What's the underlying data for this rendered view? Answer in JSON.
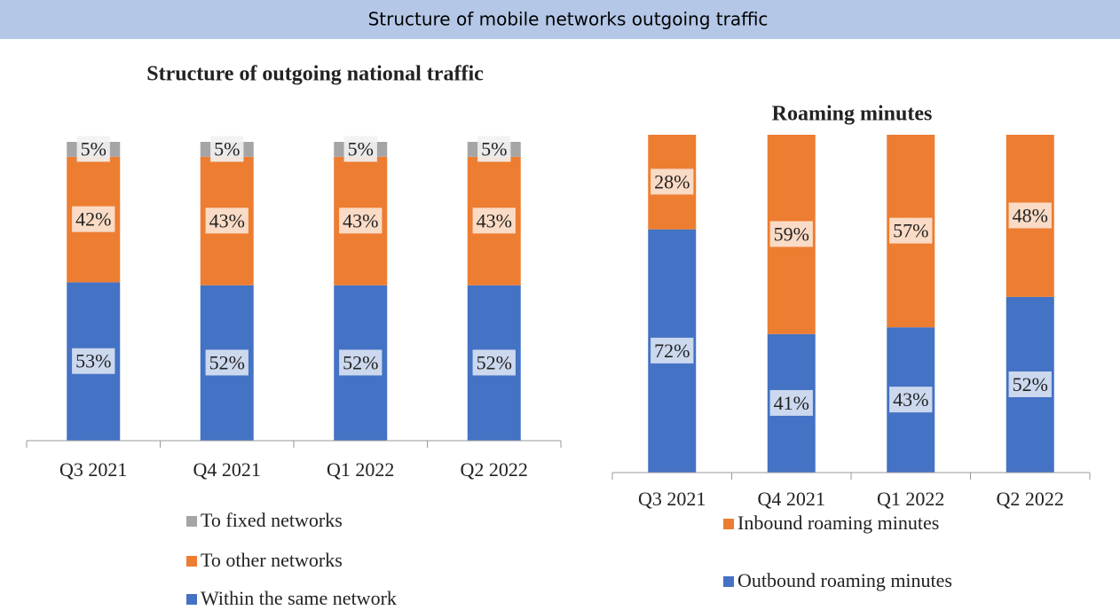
{
  "header": {
    "title": "Structure of mobile networks outgoing traffic"
  },
  "chart_data": [
    {
      "type": "bar",
      "stacked": true,
      "title": "Structure of outgoing national traffic",
      "categories": [
        "Q3 2021",
        "Q4 2021",
        "Q1 2022",
        "Q2 2022"
      ],
      "ylim": [
        0,
        100
      ],
      "series": [
        {
          "name": "Within the same network",
          "color": "#4472c4",
          "values": [
            53,
            52,
            52,
            52
          ],
          "value_labels": [
            "53%",
            "52%",
            "52%",
            "52%"
          ]
        },
        {
          "name": "To other networks",
          "color": "#ed7d31",
          "values": [
            42,
            43,
            43,
            43
          ],
          "value_labels": [
            "42%",
            "43%",
            "43%",
            "43%"
          ]
        },
        {
          "name": "To fixed networks",
          "color": "#a5a5a5",
          "values": [
            5,
            5,
            5,
            5
          ],
          "value_labels": [
            "5%",
            "5%",
            "5%",
            "5%"
          ]
        }
      ]
    },
    {
      "type": "bar",
      "stacked": true,
      "title": "Roaming minutes",
      "categories": [
        "Q3 2021",
        "Q4 2021",
        "Q1 2022",
        "Q2 2022"
      ],
      "ylim": [
        0,
        100
      ],
      "series": [
        {
          "name": "Outbound roaming minutes",
          "color": "#4472c4",
          "values": [
            72,
            41,
            43,
            52
          ],
          "value_labels": [
            "72%",
            "41%",
            "43%",
            "52%"
          ]
        },
        {
          "name": "Inbound roaming minutes",
          "color": "#ed7d31",
          "values": [
            28,
            59,
            57,
            48
          ],
          "value_labels": [
            "28%",
            "59%",
            "57%",
            "48%"
          ]
        }
      ]
    }
  ]
}
